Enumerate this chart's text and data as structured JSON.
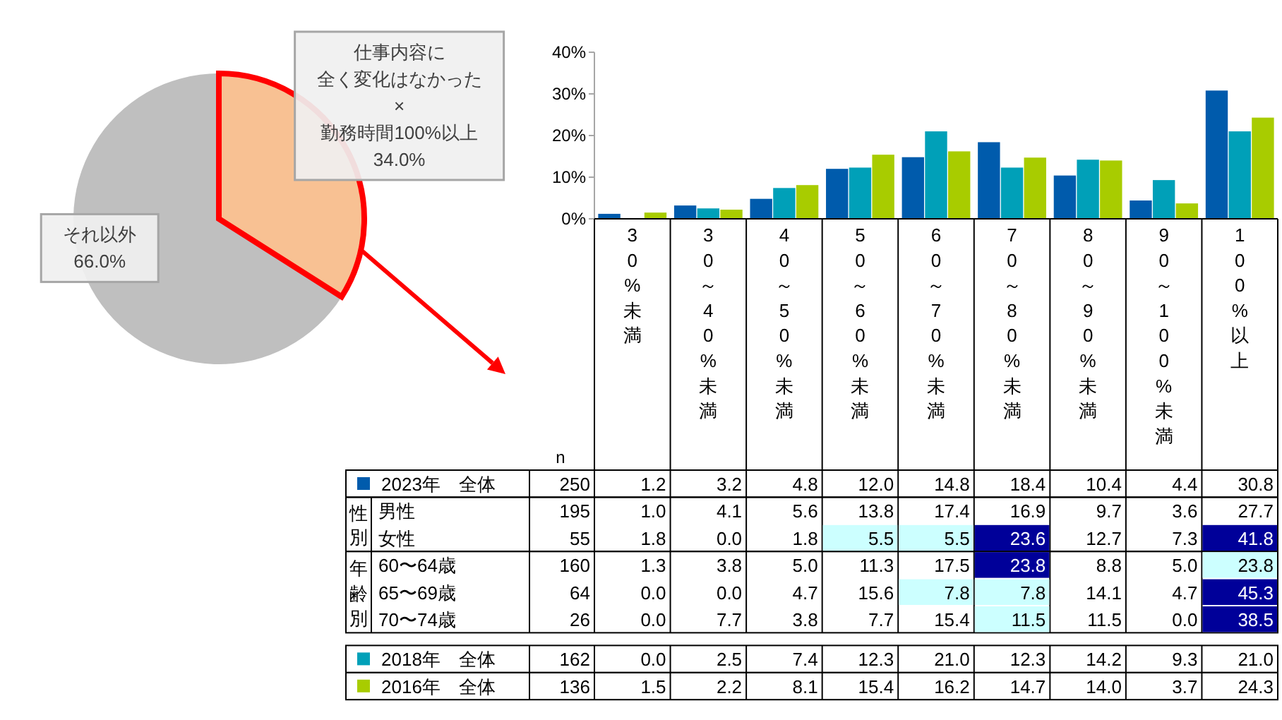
{
  "chart_data": [
    {
      "type": "pie",
      "categories": [
        "仕事内容に全く変化はなかった×勤務時間100%以上",
        "それ以外"
      ],
      "values": [
        34,
        66
      ],
      "colors": [
        "#f8c193",
        "#bfbfbf"
      ],
      "value_labels": [
        "34.0%",
        "66.0%"
      ]
    },
    {
      "type": "bar",
      "categories": [
        "30%未満",
        "30～40%未満",
        "40～50%未満",
        "50～60%未満",
        "60～70%未満",
        "70～80%未満",
        "80～90%未満",
        "90～100%未満",
        "100%以上"
      ],
      "series": [
        {
          "color": "#005bac",
          "values": [
            1.2,
            3.2,
            4.8,
            12.0,
            14.8,
            18.4,
            10.4,
            4.4,
            30.8
          ]
        },
        {
          "color": "#00a0b8",
          "values": [
            0.0,
            2.5,
            7.4,
            12.3,
            21.0,
            12.3,
            14.2,
            9.3,
            21.0
          ]
        },
        {
          "color": "#a8cc00",
          "values": [
            1.5,
            2.2,
            8.1,
            15.4,
            16.2,
            14.7,
            14.0,
            3.7,
            24.3
          ]
        }
      ],
      "ylim": [
        0,
        40
      ],
      "yticks": [
        {
          "value": 0,
          "label": "0%"
        },
        {
          "value": 10,
          "label": "10%"
        },
        {
          "value": 20,
          "label": "20%"
        },
        {
          "value": 30,
          "label": "30%"
        },
        {
          "value": 40,
          "label": "40%"
        }
      ]
    },
    {
      "type": "heatmap",
      "categories": [
        null,
        null,
        null,
        null,
        null,
        null,
        null,
        null,
        null
      ],
      "annotations": [
        "n",
        "性別",
        "年齢別"
      ],
      "y_categories": [
        "2023年　全体",
        "男性",
        "女性",
        "60〜64歳",
        "65〜69歳",
        "70〜74歳",
        "2018年　全体",
        "2016年　全体"
      ],
      "y2_categories": [
        "250",
        "195",
        "55",
        "160",
        "64",
        "26",
        "162",
        "136"
      ],
      "cells": [
        [
          1.2,
          3.2,
          4.8,
          12.0,
          14.8,
          18.4,
          10.4,
          4.4,
          30.8
        ],
        [
          1.0,
          4.1,
          5.6,
          13.8,
          17.4,
          16.9,
          9.7,
          3.6,
          27.7
        ],
        [
          1.8,
          0.0,
          1.8,
          5.5,
          5.5,
          23.6,
          12.7,
          7.3,
          41.8
        ],
        [
          1.3,
          3.8,
          5.0,
          11.3,
          17.5,
          23.8,
          8.8,
          5.0,
          23.8
        ],
        [
          0.0,
          0.0,
          4.7,
          15.6,
          7.8,
          7.8,
          14.1,
          4.7,
          45.3
        ],
        [
          0.0,
          7.7,
          3.8,
          7.7,
          15.4,
          11.5,
          11.5,
          0.0,
          38.5
        ],
        [
          0.0,
          2.5,
          7.4,
          12.3,
          21.0,
          12.3,
          14.2,
          9.3,
          21.0
        ],
        [
          1.5,
          2.2,
          8.1,
          15.4,
          16.2,
          14.7,
          14.0,
          3.7,
          24.3
        ]
      ],
      "cell_labels": [
        [
          "1.2",
          "3.2",
          "4.8",
          "12.0",
          "14.8",
          "18.4",
          "10.4",
          "4.4",
          "30.8"
        ],
        [
          "1.0",
          "4.1",
          "5.6",
          "13.8",
          "17.4",
          "16.9",
          "9.7",
          "3.6",
          "27.7"
        ],
        [
          "1.8",
          "0.0",
          "1.8",
          "5.5",
          "5.5",
          "23.6",
          "12.7",
          "7.3",
          "41.8"
        ],
        [
          "1.3",
          "3.8",
          "5.0",
          "11.3",
          "17.5",
          "23.8",
          "8.8",
          "5.0",
          "23.8"
        ],
        [
          "0.0",
          "0.0",
          "4.7",
          "15.6",
          "7.8",
          "7.8",
          "14.1",
          "4.7",
          "45.3"
        ],
        [
          "0.0",
          "7.7",
          "3.8",
          "7.7",
          "15.4",
          "11.5",
          "11.5",
          "0.0",
          "38.5"
        ],
        [
          "0.0",
          "2.5",
          "7.4",
          "12.3",
          "21.0",
          "12.3",
          "14.2",
          "9.3",
          "21.0"
        ],
        [
          "1.5",
          "2.2",
          "8.1",
          "15.4",
          "16.2",
          "14.7",
          "14.0",
          "3.7",
          "24.3"
        ]
      ],
      "colors": [
        [
          null,
          null,
          null,
          null,
          null,
          null,
          null,
          null,
          null
        ],
        [
          null,
          null,
          null,
          null,
          null,
          null,
          null,
          null,
          null
        ],
        [
          null,
          null,
          null,
          "#ccffff",
          "#ccffff",
          "#000099",
          null,
          null,
          "#000099"
        ],
        [
          null,
          null,
          null,
          null,
          null,
          "#000099",
          null,
          null,
          "#ccffff"
        ],
        [
          null,
          null,
          null,
          null,
          "#ccffff",
          "#ccffff",
          null,
          null,
          "#000099"
        ],
        [
          null,
          null,
          null,
          null,
          null,
          "#ccffff",
          null,
          null,
          "#000099"
        ],
        [
          null,
          null,
          null,
          null,
          null,
          null,
          null,
          null,
          null
        ],
        [
          null,
          null,
          null,
          null,
          null,
          null,
          null,
          null,
          null
        ]
      ]
    }
  ]
}
